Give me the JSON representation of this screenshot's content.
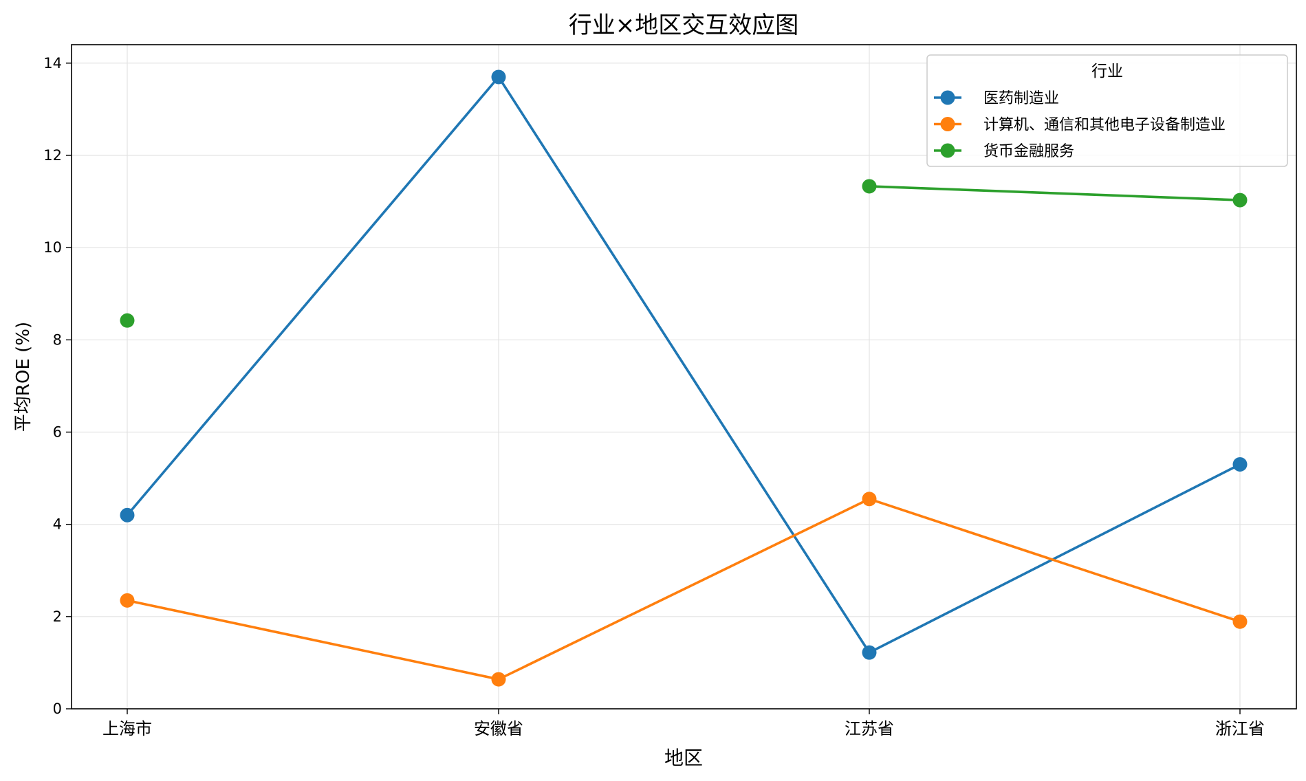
{
  "chart_data": {
    "type": "line",
    "title": "行业×地区交互效应图",
    "xlabel": "地区",
    "ylabel": "平均ROE (%)",
    "categories": [
      "上海市",
      "安徽省",
      "江苏省",
      "浙江省"
    ],
    "ylim": [
      0,
      14.4
    ],
    "yticks": [
      0,
      2,
      4,
      6,
      8,
      10,
      12,
      14
    ],
    "grid": true,
    "legend": {
      "title": "行业",
      "placement": "top-right"
    },
    "series": [
      {
        "name": "医药制造业",
        "color": "#1f77b4",
        "values": [
          4.2,
          13.7,
          1.22,
          5.3
        ]
      },
      {
        "name": "计算机、通信和其他电子设备制造业",
        "color": "#ff7f0e",
        "values": [
          2.35,
          0.64,
          4.55,
          1.89
        ]
      },
      {
        "name": "货币金融服务",
        "color": "#2ca02c",
        "values": [
          8.42,
          null,
          11.33,
          11.03
        ]
      }
    ]
  }
}
